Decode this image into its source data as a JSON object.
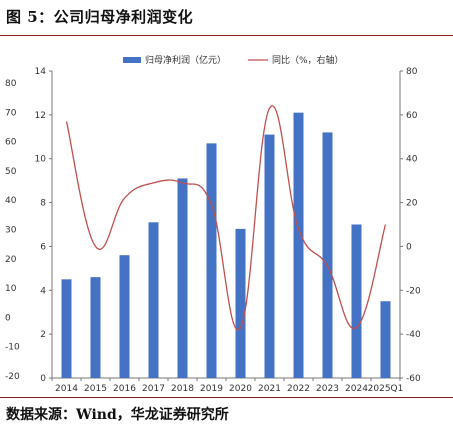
{
  "title": "图 5：公司归母净利润变化",
  "source": "数据来源：Wind，华龙证券研究所",
  "colors": {
    "bar": "#4472c4",
    "line": "#c0504d",
    "rule": "#8a1c1c"
  },
  "chart_data": {
    "type": "bar",
    "categories": [
      "2014",
      "2015",
      "2016",
      "2017",
      "2018",
      "2019",
      "2020",
      "2021",
      "2022",
      "2023",
      "2024",
      "2025Q1"
    ],
    "series": [
      {
        "name": "归母净利润（亿元）",
        "type": "bar",
        "axis": "left",
        "values": [
          4.5,
          4.6,
          5.6,
          7.1,
          9.1,
          10.7,
          6.8,
          11.1,
          12.1,
          11.2,
          7.0,
          3.5
        ]
      },
      {
        "name": "同比（%，右轴）",
        "type": "line",
        "axis": "right",
        "values": [
          57,
          0,
          22,
          29,
          29,
          19,
          -37,
          63,
          8,
          -9,
          -37,
          10
        ]
      }
    ],
    "y_left": {
      "range": [
        0,
        14
      ],
      "ticks": [
        "0",
        "2",
        "4",
        "6",
        "8",
        "10",
        "12",
        "14"
      ]
    },
    "y_right": {
      "range": [
        -60,
        80
      ],
      "ticks": [
        "-60",
        "-40",
        "-20",
        "0",
        "20",
        "40",
        "60",
        "80"
      ]
    },
    "outer_axis_labels": [
      "-20",
      "-10",
      "0",
      "10",
      "20",
      "30",
      "40",
      "50",
      "60",
      "70",
      "80"
    ],
    "legend_position": "top-center",
    "grid": false
  }
}
